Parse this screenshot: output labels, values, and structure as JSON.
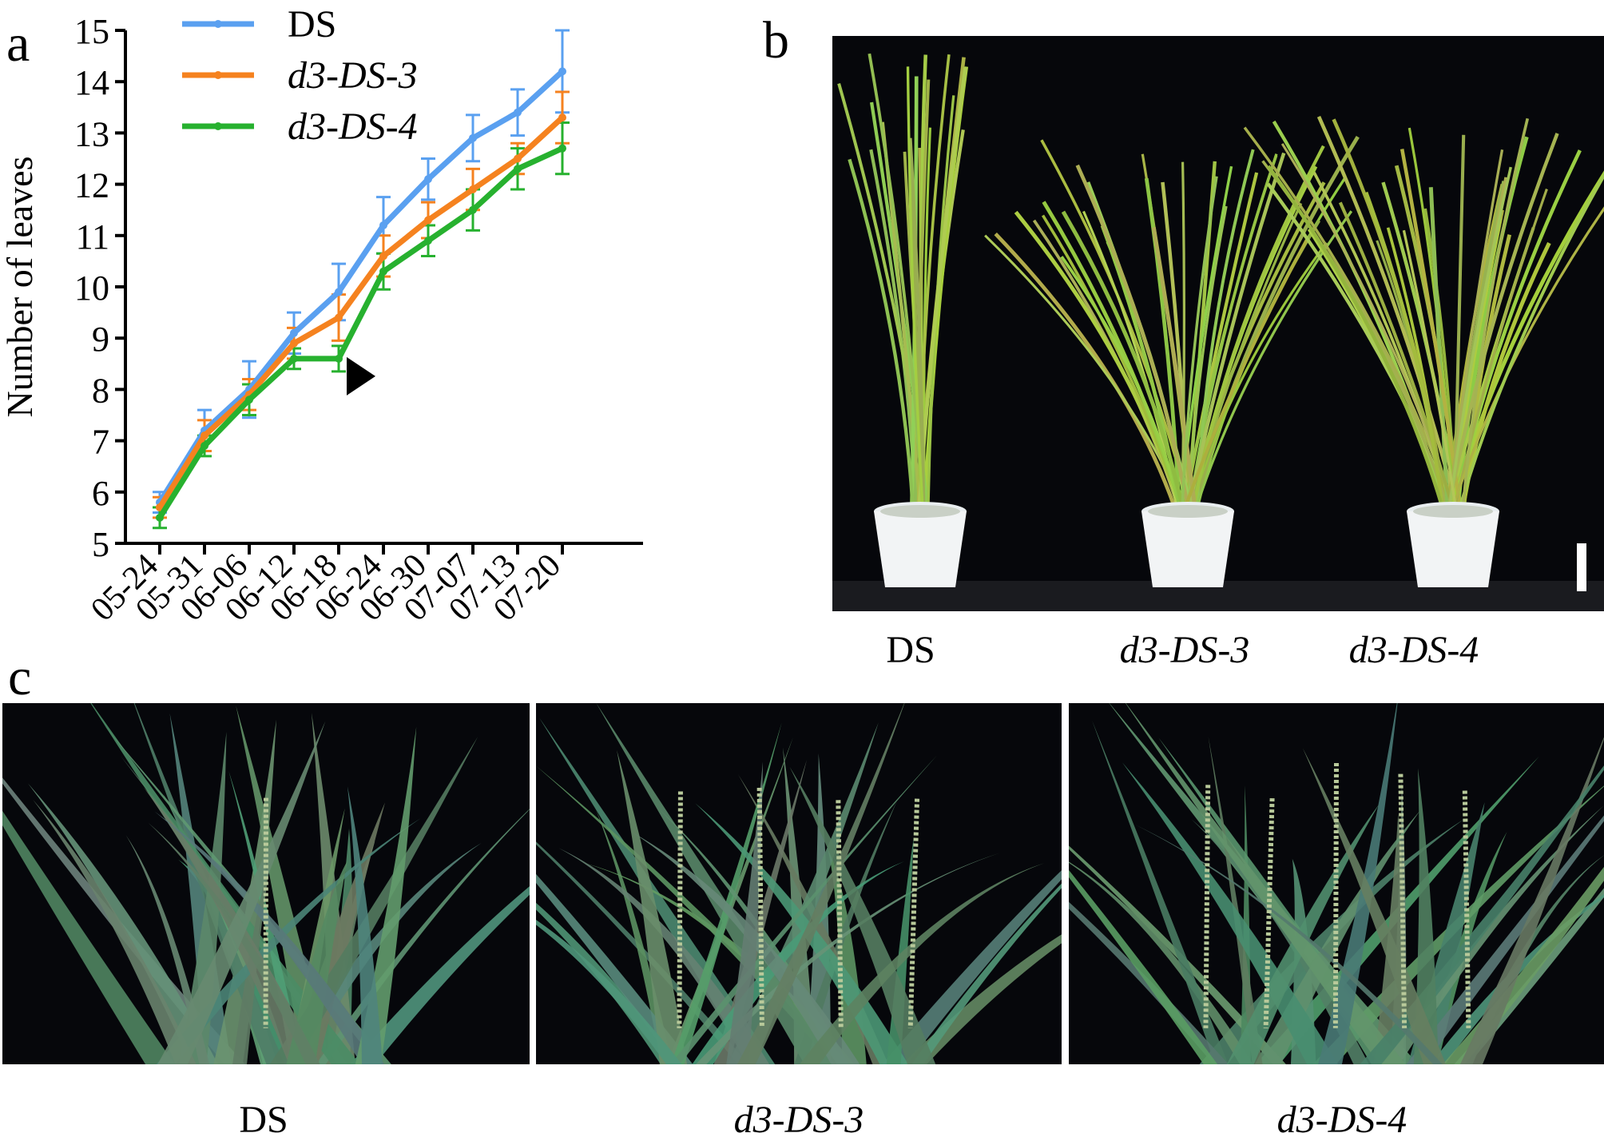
{
  "panel_labels": {
    "a": "a",
    "b": "b",
    "c": "c"
  },
  "chart_data": {
    "type": "line",
    "title": "",
    "xlabel": "",
    "ylabel": "Number of leaves",
    "ylim": [
      5,
      15
    ],
    "yticks": [
      5,
      6,
      7,
      8,
      9,
      10,
      11,
      12,
      13,
      14,
      15
    ],
    "categories": [
      "05-24",
      "05-31",
      "06-06",
      "06-12",
      "06-18",
      "06-24",
      "06-30",
      "07-07",
      "07-13",
      "07-20"
    ],
    "legend_position": "top-left",
    "series": [
      {
        "name": "DS",
        "italic": false,
        "color": "#5aa0f0",
        "values": [
          5.8,
          7.2,
          8.0,
          9.1,
          9.9,
          11.2,
          12.1,
          12.9,
          13.4,
          14.2
        ],
        "errors": [
          0.2,
          0.4,
          0.55,
          0.4,
          0.55,
          0.55,
          0.4,
          0.45,
          0.45,
          0.8
        ]
      },
      {
        "name": "d3-DS-3",
        "italic": true,
        "color": "#f5821f",
        "values": [
          5.7,
          7.1,
          7.9,
          8.9,
          9.4,
          10.6,
          11.3,
          11.9,
          12.5,
          13.3
        ],
        "errors": [
          0.2,
          0.3,
          0.3,
          0.3,
          0.45,
          0.4,
          0.35,
          0.4,
          0.3,
          0.5
        ]
      },
      {
        "name": "d3-DS-4",
        "italic": true,
        "color": "#27b12f",
        "values": [
          5.5,
          6.9,
          7.8,
          8.6,
          8.6,
          10.3,
          10.9,
          11.5,
          12.3,
          12.7
        ],
        "errors": [
          0.2,
          0.2,
          0.3,
          0.2,
          0.25,
          0.35,
          0.3,
          0.4,
          0.4,
          0.5
        ]
      }
    ],
    "annotation": {
      "marker": "black-triangle-arrow",
      "x_category": "06-18",
      "y": 8.6
    }
  },
  "panel_b": {
    "captions": [
      {
        "text": "DS",
        "italic": false
      },
      {
        "text": "d3-DS-3",
        "italic": true
      },
      {
        "text": "d3-DS-4",
        "italic": true
      }
    ]
  },
  "panel_c": {
    "captions": [
      {
        "text": "DS",
        "italic": false
      },
      {
        "text": "d3-DS-3",
        "italic": true
      },
      {
        "text": "d3-DS-4",
        "italic": true
      }
    ]
  },
  "colors": {
    "photo_background": "#06070b",
    "plant_green": "#9fbf4a",
    "leaf_green": "#5f8f72"
  }
}
